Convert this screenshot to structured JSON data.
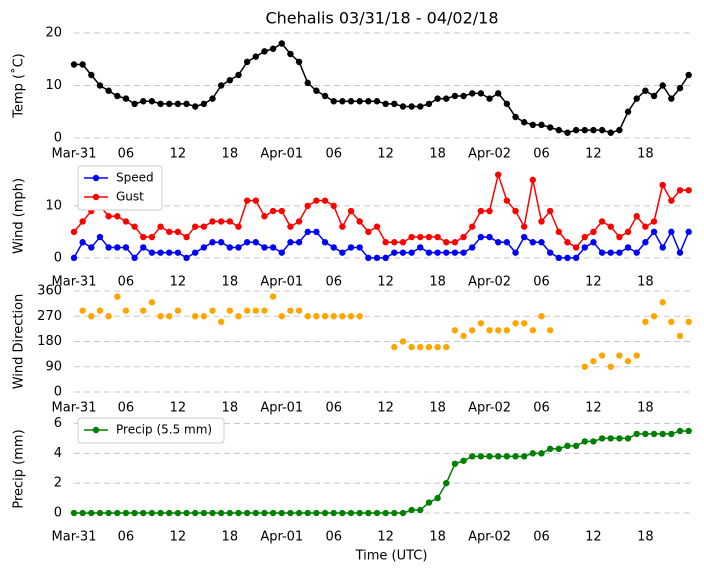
{
  "chart_data": [
    {
      "type": "line",
      "title": "Chehalis 03/31/18 - 04/02/18",
      "ylabel": "Temp (˚C)",
      "x": [
        0,
        1,
        2,
        3,
        4,
        5,
        6,
        7,
        8,
        9,
        10,
        11,
        12,
        13,
        14,
        15,
        16,
        17,
        18,
        19,
        20,
        21,
        22,
        23,
        24,
        25,
        26,
        27,
        28,
        29,
        30,
        31,
        32,
        33,
        34,
        35,
        36,
        37,
        38,
        39,
        40,
        41,
        42,
        43,
        44,
        45,
        46,
        47,
        48,
        49,
        50,
        51,
        52,
        53,
        54,
        55,
        56,
        57,
        58,
        59,
        60,
        61,
        62,
        63,
        64,
        65,
        66,
        67,
        68,
        69,
        70,
        71
      ],
      "xlim": [
        0,
        71.5
      ],
      "xticks": [
        {
          "value": 0,
          "label": "Mar-31"
        },
        {
          "value": 6,
          "label": "06"
        },
        {
          "value": 12,
          "label": "12"
        },
        {
          "value": 18,
          "label": "18"
        },
        {
          "value": 24,
          "label": "Apr-01"
        },
        {
          "value": 30,
          "label": "06"
        },
        {
          "value": 36,
          "label": "12"
        },
        {
          "value": 42,
          "label": "18"
        },
        {
          "value": 48,
          "label": "Apr-02"
        },
        {
          "value": 54,
          "label": "06"
        },
        {
          "value": 60,
          "label": "12"
        },
        {
          "value": 66,
          "label": "18"
        }
      ],
      "ylim": [
        0,
        20
      ],
      "yticks": [
        0,
        10,
        20
      ],
      "grid": true,
      "series": [
        {
          "color": "#000000",
          "values": [
            14,
            14,
            12,
            10,
            9,
            8,
            7.5,
            6.5,
            7,
            7,
            6.5,
            6.5,
            6.5,
            6.5,
            6,
            6.5,
            7.5,
            10,
            11,
            12,
            14.5,
            15.5,
            16.5,
            17,
            18,
            16,
            14.5,
            10.5,
            9,
            8,
            7,
            7,
            7,
            7,
            7,
            7,
            6.5,
            6.5,
            6,
            6,
            6,
            6.5,
            7.5,
            7.5,
            8,
            8,
            8.5,
            8.5,
            7.5,
            8.5,
            6.5,
            4,
            3,
            2.5,
            2.5,
            2,
            1.5,
            1,
            1.5,
            1.5,
            1.5,
            1.5,
            1,
            1.5,
            5,
            7.5,
            9,
            8,
            10,
            7.5,
            9.5,
            12
          ]
        }
      ]
    },
    {
      "type": "line",
      "ylabel": "Wind (mph)",
      "x": [
        0,
        1,
        2,
        3,
        4,
        5,
        6,
        7,
        8,
        9,
        10,
        11,
        12,
        13,
        14,
        15,
        16,
        17,
        18,
        19,
        20,
        21,
        22,
        23,
        24,
        25,
        26,
        27,
        28,
        29,
        30,
        31,
        32,
        33,
        34,
        35,
        36,
        37,
        38,
        39,
        40,
        41,
        42,
        43,
        44,
        45,
        46,
        47,
        48,
        49,
        50,
        51,
        52,
        53,
        54,
        55,
        56,
        57,
        58,
        59,
        60,
        61,
        62,
        63,
        64,
        65,
        66,
        67,
        68,
        69,
        70,
        71
      ],
      "xlim": [
        0,
        71.5
      ],
      "xticks": [
        {
          "value": 0,
          "label": "Mar-31"
        },
        {
          "value": 6,
          "label": "06"
        },
        {
          "value": 12,
          "label": "12"
        },
        {
          "value": 18,
          "label": "18"
        },
        {
          "value": 24,
          "label": "Apr-01"
        },
        {
          "value": 30,
          "label": "06"
        },
        {
          "value": 36,
          "label": "12"
        },
        {
          "value": 42,
          "label": "18"
        },
        {
          "value": 48,
          "label": "Apr-02"
        },
        {
          "value": 54,
          "label": "06"
        },
        {
          "value": 60,
          "label": "12"
        },
        {
          "value": 66,
          "label": "18"
        }
      ],
      "ylim": [
        -0.8,
        16.9
      ],
      "yticks": [
        0,
        10
      ],
      "grid": true,
      "legend": "upper left",
      "series": [
        {
          "name": "Speed",
          "color": "#0000ff",
          "values": [
            0,
            3,
            2,
            4,
            2,
            2,
            2,
            0,
            2,
            1,
            1,
            1,
            1,
            0,
            1,
            2,
            3,
            3,
            2,
            2,
            3,
            3,
            2,
            2,
            1,
            3,
            3,
            5,
            5,
            3,
            2,
            1,
            2,
            2,
            0,
            0,
            0,
            1,
            1,
            1,
            2,
            1,
            1,
            1,
            1,
            1,
            2,
            4,
            4,
            3,
            3,
            1,
            4,
            3,
            3,
            1,
            0,
            0,
            0,
            2,
            3,
            1,
            1,
            1,
            2,
            1,
            3,
            5,
            2,
            5,
            1,
            5
          ]
        },
        {
          "name": "Gust",
          "color": "#ff0000",
          "values": [
            5,
            7,
            9,
            10,
            8,
            8,
            7,
            6,
            4,
            4,
            6,
            5,
            5,
            4,
            6,
            6,
            7,
            7,
            7,
            6,
            11,
            11,
            8,
            9,
            9,
            6,
            7,
            10,
            11,
            11,
            10,
            6,
            9,
            7,
            5,
            6,
            3,
            3,
            3,
            4,
            4,
            4,
            4,
            3,
            3,
            4,
            6,
            9,
            9,
            16,
            11,
            9,
            6,
            15,
            7,
            9,
            5,
            3,
            2,
            4,
            5,
            7,
            6,
            4,
            5,
            8,
            6,
            7,
            14,
            11,
            13,
            13
          ]
        }
      ]
    },
    {
      "type": "line",
      "ylabel": "Wind Direction",
      "markers_only": true,
      "x": [
        0,
        1,
        2,
        3,
        4,
        5,
        6,
        7,
        8,
        9,
        10,
        11,
        12,
        13,
        14,
        15,
        16,
        17,
        18,
        19,
        20,
        21,
        22,
        23,
        24,
        25,
        26,
        27,
        28,
        29,
        30,
        31,
        32,
        33,
        34,
        35,
        36,
        37,
        38,
        39,
        40,
        41,
        42,
        43,
        44,
        45,
        46,
        47,
        48,
        49,
        50,
        51,
        52,
        53,
        54,
        55,
        56,
        57,
        58,
        59,
        60,
        61,
        62,
        63,
        64,
        65,
        66,
        67,
        68,
        69,
        70,
        71
      ],
      "xlim": [
        0,
        71.5
      ],
      "xticks": [
        {
          "value": 0,
          "label": "Mar-31"
        },
        {
          "value": 6,
          "label": "06"
        },
        {
          "value": 12,
          "label": "12"
        },
        {
          "value": 18,
          "label": "18"
        },
        {
          "value": 24,
          "label": "Apr-01"
        },
        {
          "value": 30,
          "label": "06"
        },
        {
          "value": 36,
          "label": "12"
        },
        {
          "value": 42,
          "label": "18"
        },
        {
          "value": 48,
          "label": "Apr-02"
        },
        {
          "value": 54,
          "label": "06"
        },
        {
          "value": 60,
          "label": "12"
        },
        {
          "value": 66,
          "label": "18"
        }
      ],
      "ylim": [
        0,
        360
      ],
      "yticks": [
        0,
        90,
        180,
        270,
        360
      ],
      "grid": true,
      "series": [
        {
          "color": "#ffa500",
          "values": [
            null,
            290,
            270,
            290,
            270,
            340,
            290,
            null,
            290,
            320,
            270,
            270,
            290,
            null,
            270,
            270,
            290,
            250,
            290,
            270,
            290,
            290,
            290,
            340,
            270,
            290,
            290,
            270,
            270,
            270,
            270,
            270,
            270,
            270,
            null,
            null,
            null,
            160,
            180,
            160,
            160,
            160,
            160,
            160,
            220,
            200,
            220,
            245,
            220,
            220,
            220,
            245,
            245,
            220,
            270,
            220,
            null,
            null,
            null,
            90,
            110,
            130,
            90,
            130,
            110,
            130,
            250,
            270,
            320,
            250,
            200,
            250
          ]
        }
      ]
    },
    {
      "type": "line",
      "ylabel": "Precip (mm)",
      "xlabel": "Time (UTC)",
      "x": [
        0,
        1,
        2,
        3,
        4,
        5,
        6,
        7,
        8,
        9,
        10,
        11,
        12,
        13,
        14,
        15,
        16,
        17,
        18,
        19,
        20,
        21,
        22,
        23,
        24,
        25,
        26,
        27,
        28,
        29,
        30,
        31,
        32,
        33,
        34,
        35,
        36,
        37,
        38,
        39,
        40,
        41,
        42,
        43,
        44,
        45,
        46,
        47,
        48,
        49,
        50,
        51,
        52,
        53,
        54,
        55,
        56,
        57,
        58,
        59,
        60,
        61,
        62,
        63,
        64,
        65,
        66,
        67,
        68,
        69,
        70,
        71
      ],
      "xlim": [
        0,
        71.5
      ],
      "xticks": [
        {
          "value": 0,
          "label": "Mar-31"
        },
        {
          "value": 6,
          "label": "06"
        },
        {
          "value": 12,
          "label": "12"
        },
        {
          "value": 18,
          "label": "18"
        },
        {
          "value": 24,
          "label": "Apr-01"
        },
        {
          "value": 30,
          "label": "06"
        },
        {
          "value": 36,
          "label": "12"
        },
        {
          "value": 42,
          "label": "18"
        },
        {
          "value": 48,
          "label": "Apr-02"
        },
        {
          "value": 54,
          "label": "06"
        },
        {
          "value": 60,
          "label": "12"
        },
        {
          "value": 66,
          "label": "18"
        }
      ],
      "ylim": [
        -0.2,
        6.1
      ],
      "yticks": [
        0,
        2,
        4,
        6
      ],
      "grid": true,
      "legend": "upper left",
      "series": [
        {
          "name": "Precip (5.5 mm)",
          "color": "#008000",
          "values": [
            0,
            0,
            0,
            0,
            0,
            0,
            0,
            0,
            0,
            0,
            0,
            0,
            0,
            0,
            0,
            0,
            0,
            0,
            0,
            0,
            0,
            0,
            0,
            0,
            0,
            0,
            0,
            0,
            0,
            0,
            0,
            0,
            0,
            0,
            0,
            0,
            0,
            0,
            0,
            0.2,
            0.2,
            0.7,
            1.0,
            2.0,
            3.3,
            3.5,
            3.8,
            3.8,
            3.8,
            3.8,
            3.8,
            3.8,
            3.8,
            4.0,
            4.0,
            4.3,
            4.3,
            4.5,
            4.5,
            4.8,
            4.8,
            5.0,
            5.0,
            5.0,
            5.0,
            5.3,
            5.3,
            5.3,
            5.3,
            5.3,
            5.5,
            5.5
          ]
        }
      ]
    }
  ]
}
